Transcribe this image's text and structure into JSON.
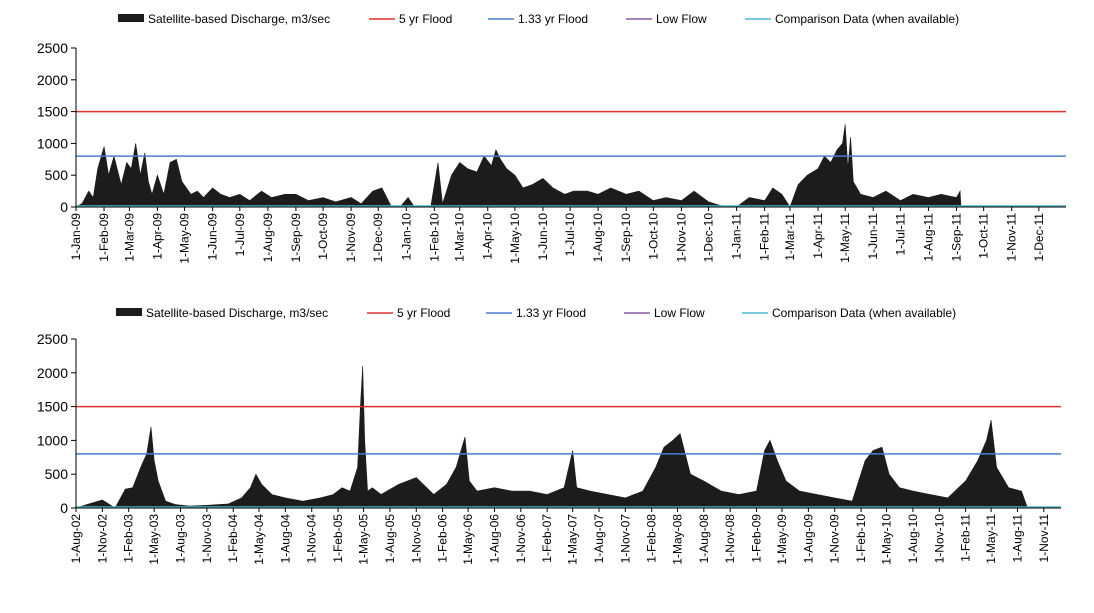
{
  "colors": {
    "discharge": "#1c1c1c",
    "flood_5yr": "#e03030",
    "flood_133yr": "#4a7ed0",
    "low_flow": "#8a5aa8",
    "comparison": "#4ab8d0",
    "axis": "#000000"
  },
  "legend_items": [
    {
      "key": "discharge",
      "label": "Satellite-based Discharge, m3/sec",
      "symbol": "area"
    },
    {
      "key": "flood_5yr",
      "label": "5 yr Flood",
      "symbol": "line"
    },
    {
      "key": "flood_133yr",
      "label": "1.33 yr Flood",
      "symbol": "line"
    },
    {
      "key": "low_flow",
      "label": "Low Flow",
      "symbol": "line"
    },
    {
      "key": "comparison",
      "label": "Comparison Data (when available)",
      "symbol": "line"
    }
  ],
  "chart_data": [
    {
      "type": "area",
      "legend": "top",
      "grid": false,
      "ylim": [
        0,
        2500
      ],
      "yticks": [
        0,
        500,
        1000,
        1500,
        2000,
        2500
      ],
      "xlim": [
        "2009-01-01",
        "2011-12-31"
      ],
      "categories": [
        "1-Jan-09",
        "1-Feb-09",
        "1-Mar-09",
        "1-Apr-09",
        "1-May-09",
        "1-Jun-09",
        "1-Jul-09",
        "1-Aug-09",
        "1-Sep-09",
        "1-Oct-09",
        "1-Nov-09",
        "1-Dec-09",
        "1-Jan-10",
        "1-Feb-10",
        "1-Mar-10",
        "1-Apr-10",
        "1-May-10",
        "1-Jun-10",
        "1-Jul-10",
        "1-Aug-10",
        "1-Sep-10",
        "1-Oct-10",
        "1-Nov-10",
        "1-Dec-10",
        "1-Jan-11",
        "1-Feb-11",
        "1-Mar-11",
        "1-Apr-11",
        "1-May-11",
        "1-Jun-11",
        "1-Jul-11",
        "1-Aug-11",
        "1-Sep-11",
        "1-Oct-11",
        "1-Nov-11",
        "1-Dec-11"
      ],
      "thresholds": {
        "flood_5yr": 1500,
        "flood_133yr": 800
      },
      "series": [
        {
          "name": "Satellite-based Discharge, m3/sec",
          "x": [
            "2009-01-01",
            "2009-01-08",
            "2009-01-15",
            "2009-01-20",
            "2009-01-25",
            "2009-02-01",
            "2009-02-06",
            "2009-02-12",
            "2009-02-20",
            "2009-02-26",
            "2009-03-03",
            "2009-03-08",
            "2009-03-13",
            "2009-03-18",
            "2009-03-22",
            "2009-03-26",
            "2009-04-01",
            "2009-04-08",
            "2009-04-15",
            "2009-04-22",
            "2009-04-28",
            "2009-05-03",
            "2009-05-08",
            "2009-05-15",
            "2009-05-22",
            "2009-06-01",
            "2009-06-10",
            "2009-06-20",
            "2009-07-01",
            "2009-07-12",
            "2009-07-25",
            "2009-08-05",
            "2009-08-20",
            "2009-09-01",
            "2009-09-15",
            "2009-10-01",
            "2009-10-15",
            "2009-11-01",
            "2009-11-12",
            "2009-11-25",
            "2009-12-05",
            "2009-12-15",
            "2009-12-25",
            "2010-01-03",
            "2010-01-10",
            "2010-01-20",
            "2010-01-28",
            "2010-02-05",
            "2010-02-10",
            "2010-02-20",
            "2010-03-01",
            "2010-03-10",
            "2010-03-20",
            "2010-03-28",
            "2010-04-05",
            "2010-04-10",
            "2010-04-15",
            "2010-04-22",
            "2010-05-01",
            "2010-05-10",
            "2010-05-20",
            "2010-06-01",
            "2010-06-12",
            "2010-06-25",
            "2010-07-05",
            "2010-07-20",
            "2010-08-01",
            "2010-08-15",
            "2010-09-01",
            "2010-09-15",
            "2010-10-01",
            "2010-10-15",
            "2010-11-01",
            "2010-11-15",
            "2010-12-01",
            "2010-12-15",
            "2011-01-01",
            "2011-01-15",
            "2011-02-01",
            "2011-02-10",
            "2011-02-20",
            "2011-03-01",
            "2011-03-10",
            "2011-03-20",
            "2011-04-01",
            "2011-04-08",
            "2011-04-15",
            "2011-04-22",
            "2011-04-28",
            "2011-05-01",
            "2011-05-04",
            "2011-05-07",
            "2011-05-10",
            "2011-05-18",
            "2011-06-01",
            "2011-06-15",
            "2011-07-01",
            "2011-07-15",
            "2011-08-01",
            "2011-08-15",
            "2011-09-01",
            "2011-09-05",
            "2011-09-06",
            "2011-12-31"
          ],
          "values": [
            0,
            60,
            250,
            150,
            600,
            950,
            500,
            800,
            350,
            700,
            600,
            1000,
            500,
            850,
            400,
            200,
            500,
            200,
            700,
            750,
            400,
            300,
            200,
            250,
            150,
            300,
            200,
            150,
            200,
            100,
            250,
            150,
            200,
            200,
            100,
            150,
            80,
            150,
            50,
            250,
            300,
            20,
            0,
            150,
            0,
            0,
            0,
            700,
            50,
            500,
            700,
            600,
            550,
            800,
            650,
            900,
            750,
            600,
            500,
            300,
            350,
            450,
            300,
            200,
            250,
            250,
            200,
            300,
            200,
            250,
            100,
            150,
            100,
            250,
            80,
            20,
            0,
            150,
            100,
            300,
            200,
            0,
            350,
            500,
            600,
            800,
            700,
            900,
            1000,
            1300,
            600,
            1100,
            400,
            200,
            150,
            250,
            100,
            200,
            150,
            200,
            150,
            250,
            0,
            0
          ]
        }
      ]
    },
    {
      "type": "area",
      "legend": "top",
      "grid": false,
      "ylim": [
        0,
        2500
      ],
      "yticks": [
        0,
        500,
        1000,
        1500,
        2000,
        2500
      ],
      "xlim": [
        "2002-08-01",
        "2011-12-31"
      ],
      "categories": [
        "1-Aug-02",
        "1-Nov-02",
        "1-Feb-03",
        "1-May-03",
        "1-Aug-03",
        "1-Nov-03",
        "1-Feb-04",
        "1-May-04",
        "1-Aug-04",
        "1-Nov-04",
        "1-Feb-05",
        "1-May-05",
        "1-Aug-05",
        "1-Nov-05",
        "1-Feb-06",
        "1-May-06",
        "1-Aug-06",
        "1-Nov-06",
        "1-Feb-07",
        "1-May-07",
        "1-Aug-07",
        "1-Nov-07",
        "1-Feb-08",
        "1-May-08",
        "1-Aug-08",
        "1-Nov-08",
        "1-Feb-09",
        "1-May-09",
        "1-Aug-09",
        "1-Nov-09",
        "1-Feb-10",
        "1-May-10",
        "1-Aug-10",
        "1-Nov-10",
        "1-Feb-11",
        "1-May-11",
        "1-Aug-11",
        "1-Nov-11"
      ],
      "thresholds": {
        "flood_5yr": 1500,
        "flood_133yr": 800
      },
      "series": [
        {
          "name": "Satellite-based Discharge, m3/sec",
          "x": [
            "2002-08-01",
            "2002-09-15",
            "2002-11-01",
            "2002-12-15",
            "2003-01-20",
            "2003-02-15",
            "2003-03-15",
            "2003-04-05",
            "2003-04-20",
            "2003-05-01",
            "2003-05-15",
            "2003-06-10",
            "2003-07-15",
            "2003-09-01",
            "2003-11-01",
            "2004-01-15",
            "2004-03-01",
            "2004-04-01",
            "2004-04-20",
            "2004-05-10",
            "2004-06-15",
            "2004-08-01",
            "2004-10-01",
            "2004-12-01",
            "2005-01-15",
            "2005-02-15",
            "2005-03-15",
            "2005-04-10",
            "2005-04-20",
            "2005-04-28",
            "2005-05-05",
            "2005-05-15",
            "2005-06-01",
            "2005-07-01",
            "2005-09-01",
            "2005-11-01",
            "2006-01-01",
            "2006-02-15",
            "2006-03-20",
            "2006-04-20",
            "2006-05-05",
            "2006-06-01",
            "2006-08-01",
            "2006-10-01",
            "2006-12-01",
            "2007-02-01",
            "2007-04-01",
            "2007-05-01",
            "2007-05-15",
            "2007-07-01",
            "2007-09-01",
            "2007-11-01",
            "2008-01-01",
            "2008-02-15",
            "2008-03-15",
            "2008-04-15",
            "2008-05-10",
            "2008-06-15",
            "2008-08-01",
            "2008-10-01",
            "2008-12-01",
            "2009-02-01",
            "2009-03-01",
            "2009-03-20",
            "2009-04-15",
            "2009-05-15",
            "2009-07-01",
            "2009-09-01",
            "2009-11-01",
            "2010-01-01",
            "2010-02-15",
            "2010-03-15",
            "2010-04-15",
            "2010-05-10",
            "2010-06-15",
            "2010-08-01",
            "2010-10-01",
            "2010-12-01",
            "2011-02-01",
            "2011-03-15",
            "2011-04-15",
            "2011-05-01",
            "2011-05-20",
            "2011-07-01",
            "2011-08-15",
            "2011-09-05",
            "2011-09-06",
            "2011-12-31"
          ],
          "values": [
            0,
            60,
            120,
            0,
            280,
            300,
            600,
            800,
            1200,
            700,
            400,
            100,
            50,
            30,
            40,
            60,
            150,
            300,
            500,
            350,
            200,
            150,
            100,
            150,
            200,
            300,
            250,
            600,
            1500,
            2100,
            1000,
            250,
            300,
            200,
            350,
            450,
            200,
            350,
            600,
            1050,
            400,
            250,
            300,
            250,
            250,
            200,
            300,
            850,
            300,
            250,
            200,
            150,
            250,
            600,
            900,
            1000,
            1100,
            500,
            400,
            250,
            200,
            250,
            850,
            1000,
            700,
            400,
            250,
            200,
            150,
            100,
            700,
            850,
            900,
            500,
            300,
            250,
            200,
            150,
            400,
            700,
            1000,
            1300,
            600,
            300,
            250,
            0,
            0,
            0
          ]
        }
      ]
    }
  ]
}
